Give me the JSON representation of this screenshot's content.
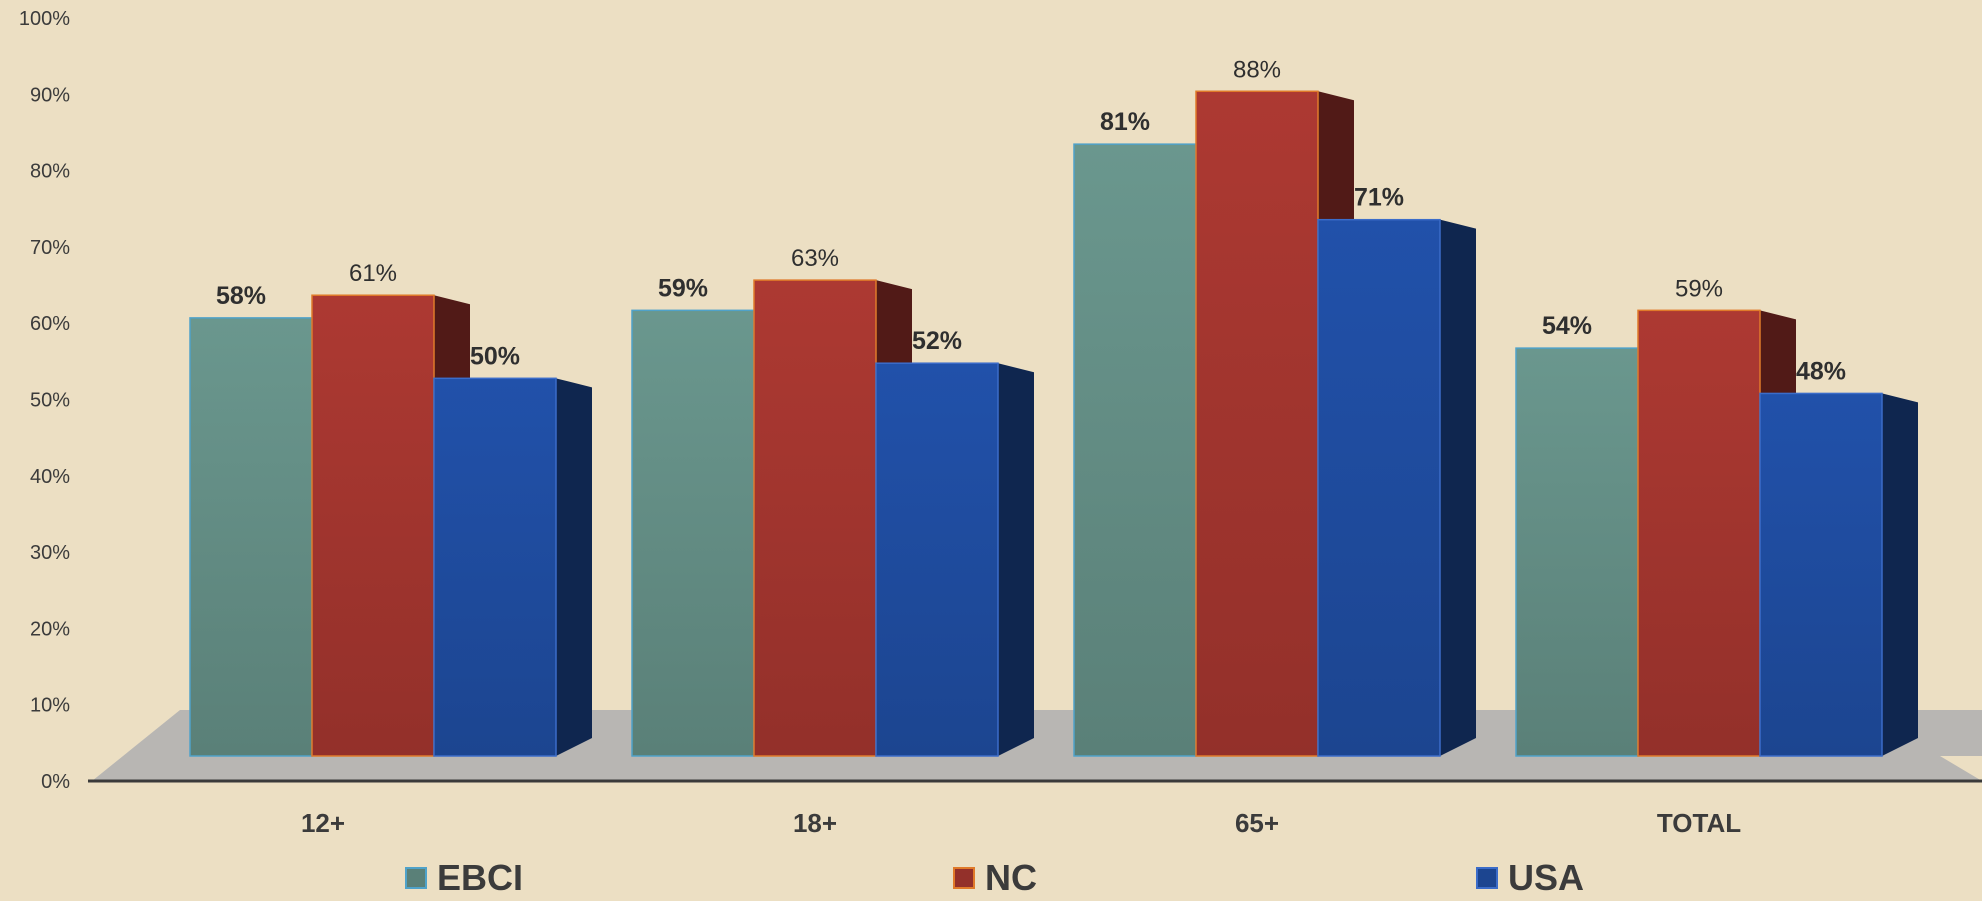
{
  "chart_data": {
    "type": "bar",
    "categories": [
      "12+",
      "18+",
      "65+",
      "TOTAL"
    ],
    "series": [
      {
        "name": "EBCI",
        "values": [
          58,
          59,
          81,
          54
        ],
        "labels": [
          "58%",
          "59%",
          "81%",
          "54%"
        ],
        "color": "#5a8078"
      },
      {
        "name": "NC",
        "values": [
          61,
          63,
          88,
          59
        ],
        "labels": [
          "61%",
          "63%",
          "88%",
          "59%"
        ],
        "color": "#93302a"
      },
      {
        "name": "USA",
        "values": [
          50,
          52,
          71,
          48
        ],
        "labels": [
          "50%",
          "52%",
          "71%",
          "48%"
        ],
        "color": "#1c4590"
      }
    ],
    "y_ticks": [
      "0%",
      "10%",
      "20%",
      "30%",
      "40%",
      "50%",
      "60%",
      "70%",
      "80%",
      "90%",
      "100%"
    ],
    "ylim": [
      0,
      100
    ],
    "title": "",
    "xlabel": "",
    "ylabel": "",
    "grid": false,
    "legend": "bottom"
  },
  "legend": {
    "items": [
      {
        "label": "EBCI",
        "color": "#5a8078",
        "border": "#4fa2c9"
      },
      {
        "label": "NC",
        "color": "#93302a",
        "border": "#e07a2a"
      },
      {
        "label": "USA",
        "color": "#1c4590",
        "border": "#3b6cc9"
      }
    ]
  },
  "colors": {
    "background": "#ecdfc3",
    "floor": "#b8b6b3",
    "axis": "#3a3a3a"
  }
}
